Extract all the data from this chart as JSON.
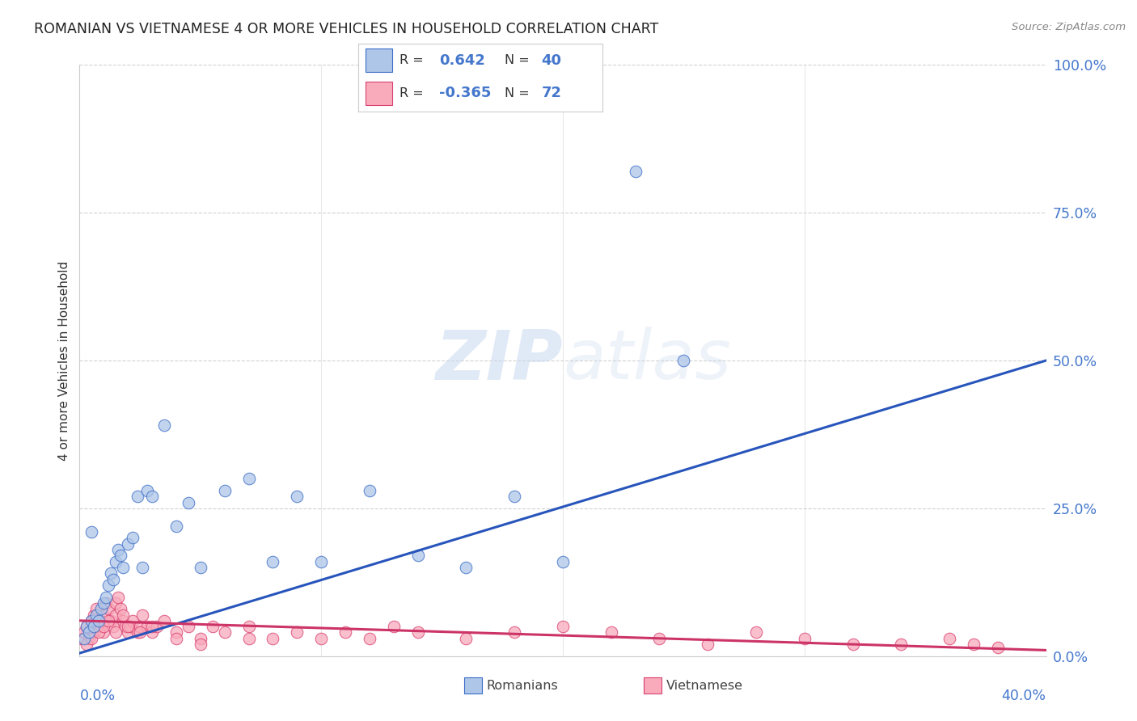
{
  "title": "ROMANIAN VS VIETNAMESE 4 OR MORE VEHICLES IN HOUSEHOLD CORRELATION CHART",
  "source": "Source: ZipAtlas.com",
  "ylabel": "4 or more Vehicles in Household",
  "xlim": [
    0.0,
    40.0
  ],
  "ylim": [
    0.0,
    100.0
  ],
  "legend_r_blue": "0.642",
  "legend_n_blue": "40",
  "legend_r_pink": "-0.365",
  "legend_n_pink": "72",
  "blue_fill": "#AEC6E8",
  "blue_edge": "#3B6CC8",
  "pink_fill": "#F9AABB",
  "pink_edge": "#D94070",
  "blue_line": "#2855BB",
  "pink_line": "#CC3366",
  "watermark_color": "#C8D8F0",
  "grid_color": "#CCCCCC",
  "tick_color": "#4477CC",
  "romanian_x": [
    0.2,
    0.3,
    0.4,
    0.5,
    0.6,
    0.7,
    0.8,
    0.9,
    1.0,
    1.1,
    1.2,
    1.3,
    1.4,
    1.5,
    1.6,
    1.7,
    1.8,
    2.0,
    2.2,
    2.4,
    2.6,
    2.8,
    3.0,
    3.5,
    4.0,
    4.5,
    5.0,
    6.0,
    7.0,
    8.0,
    9.0,
    10.0,
    12.0,
    14.0,
    16.0,
    18.0,
    20.0,
    23.0,
    25.0,
    0.5
  ],
  "romanian_y": [
    3.0,
    5.0,
    4.0,
    6.0,
    5.0,
    7.0,
    6.0,
    8.0,
    9.0,
    10.0,
    12.0,
    14.0,
    13.0,
    16.0,
    18.0,
    17.0,
    15.0,
    19.0,
    20.0,
    27.0,
    15.0,
    28.0,
    27.0,
    39.0,
    22.0,
    26.0,
    15.0,
    28.0,
    30.0,
    16.0,
    27.0,
    16.0,
    28.0,
    17.0,
    15.0,
    27.0,
    16.0,
    82.0,
    50.0,
    21.0
  ],
  "vietnamese_x": [
    0.1,
    0.2,
    0.3,
    0.4,
    0.5,
    0.6,
    0.6,
    0.7,
    0.7,
    0.8,
    0.9,
    1.0,
    1.0,
    1.1,
    1.2,
    1.3,
    1.4,
    1.5,
    1.5,
    1.6,
    1.7,
    1.8,
    1.9,
    2.0,
    2.1,
    2.2,
    2.4,
    2.5,
    2.6,
    2.8,
    3.0,
    3.2,
    3.5,
    4.0,
    4.5,
    5.0,
    5.5,
    6.0,
    7.0,
    8.0,
    9.0,
    10.0,
    11.0,
    12.0,
    13.0,
    14.0,
    16.0,
    18.0,
    20.0,
    22.0,
    24.0,
    26.0,
    28.0,
    30.0,
    32.0,
    34.0,
    36.0,
    37.0,
    38.0,
    0.3,
    0.5,
    0.8,
    1.0,
    1.2,
    1.5,
    1.8,
    2.0,
    2.5,
    3.0,
    4.0,
    5.0,
    7.0
  ],
  "vietnamese_y": [
    3.0,
    4.0,
    5.0,
    3.0,
    6.0,
    4.0,
    7.0,
    5.0,
    8.0,
    6.0,
    5.0,
    7.0,
    4.0,
    9.0,
    8.0,
    6.0,
    5.0,
    9.0,
    7.0,
    10.0,
    8.0,
    6.0,
    5.0,
    4.0,
    5.0,
    6.0,
    4.0,
    5.0,
    7.0,
    5.0,
    4.0,
    5.0,
    6.0,
    4.0,
    5.0,
    3.0,
    5.0,
    4.0,
    5.0,
    3.0,
    4.0,
    3.0,
    4.0,
    3.0,
    5.0,
    4.0,
    3.0,
    4.0,
    5.0,
    4.0,
    3.0,
    2.0,
    4.0,
    3.0,
    2.0,
    2.0,
    3.0,
    2.0,
    1.5,
    2.0,
    3.0,
    4.0,
    5.0,
    6.0,
    4.0,
    7.0,
    5.0,
    4.0,
    5.0,
    3.0,
    2.0,
    3.0
  ],
  "rom_line_x0": 0.0,
  "rom_line_y0": 0.5,
  "rom_line_x1": 40.0,
  "rom_line_y1": 50.0,
  "viet_line_x0": 0.0,
  "viet_line_y0": 6.0,
  "viet_line_x1": 40.0,
  "viet_line_y1": 1.0
}
